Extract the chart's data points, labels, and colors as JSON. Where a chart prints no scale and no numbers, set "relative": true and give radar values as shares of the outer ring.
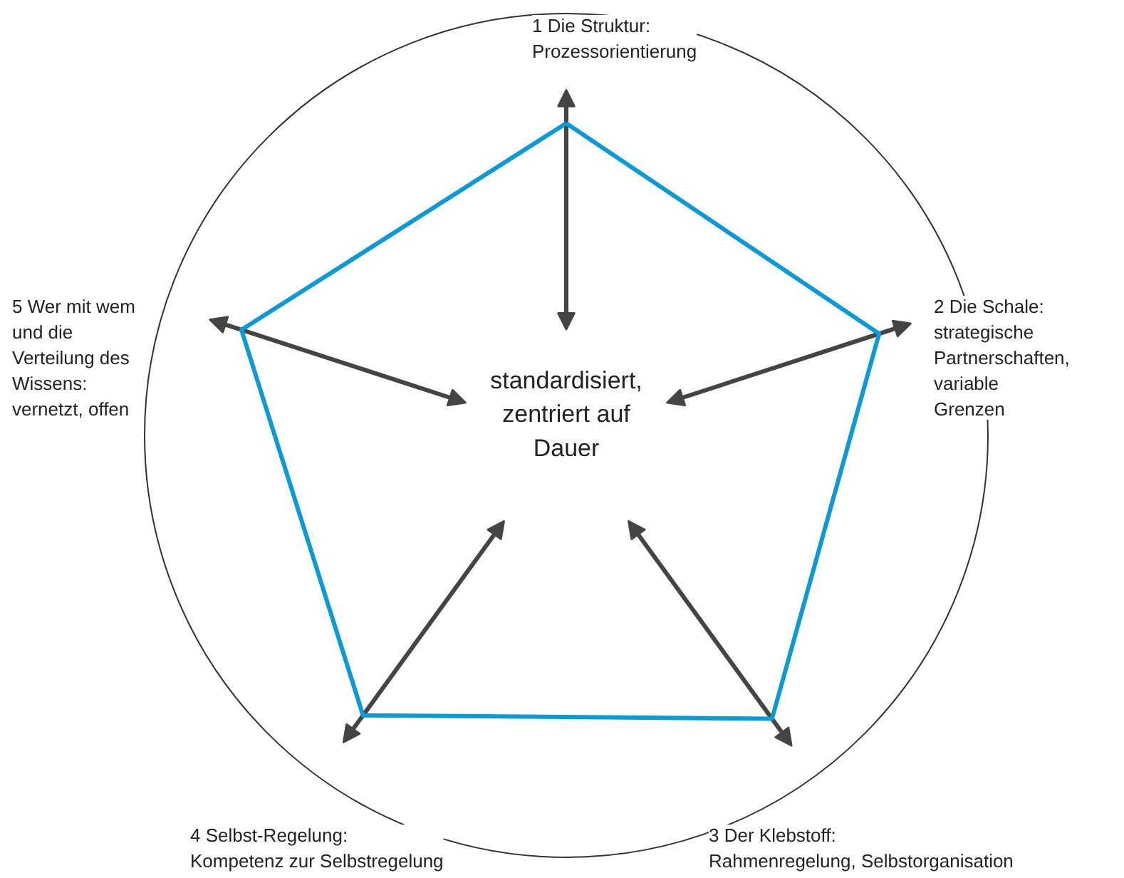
{
  "chart_data": {
    "type": "radar",
    "relative": true,
    "categories": [
      "1 Die Struktur:\nProzessorientierung",
      "2 Die Schale:\nstrategische\nPartnerschaften,\nvariable\nGrenzen",
      "3 Der Klebstoff:\nRahmenregelung, Selbstorganisation",
      "4 Selbst-Regelung:\nKompetenz zur Selbstregelung",
      "5 Wer mit wem\nund die\nVerteilung des\nWissens:\nvernetzt, offen"
    ],
    "series": [
      {
        "color": "#0a9ad7",
        "values": [
          0.74,
          0.78,
          0.83,
          0.82,
          0.81
        ]
      }
    ],
    "annotations": [
      "standardisiert,\nzentriert auf\nDauer"
    ],
    "marker": "none",
    "grid": false
  }
}
